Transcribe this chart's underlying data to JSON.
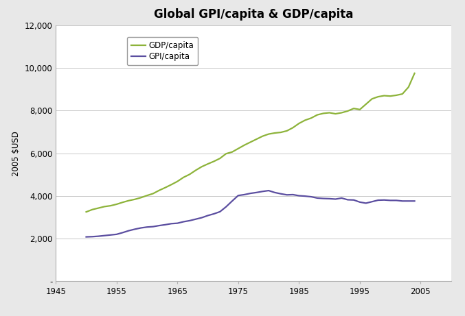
{
  "title": "Global GPI/capita & GDP/capita",
  "ylabel": "2005 $USD",
  "xlim": [
    1945,
    2010
  ],
  "ylim": [
    0,
    12000
  ],
  "xticks": [
    1945,
    1955,
    1965,
    1975,
    1985,
    1995,
    2005
  ],
  "yticks": [
    0,
    2000,
    4000,
    6000,
    8000,
    10000,
    12000
  ],
  "fig_bg_color": "#e8e8e8",
  "plot_bg_color": "#ffffff",
  "gdp_color": "#8db33a",
  "gpi_color": "#5b4ea0",
  "gdp_label": "GDP/capita",
  "gpi_label": "GPI/capita",
  "gdp_years": [
    1950,
    1951,
    1952,
    1953,
    1954,
    1955,
    1956,
    1957,
    1958,
    1959,
    1960,
    1961,
    1962,
    1963,
    1964,
    1965,
    1966,
    1967,
    1968,
    1969,
    1970,
    1971,
    1972,
    1973,
    1974,
    1975,
    1976,
    1977,
    1978,
    1979,
    1980,
    1981,
    1982,
    1983,
    1984,
    1985,
    1986,
    1987,
    1988,
    1989,
    1990,
    1991,
    1992,
    1993,
    1994,
    1995,
    1996,
    1997,
    1998,
    1999,
    2000,
    2001,
    2002,
    2003,
    2004
  ],
  "gdp_values": [
    3250,
    3360,
    3430,
    3500,
    3540,
    3610,
    3700,
    3780,
    3840,
    3920,
    4020,
    4110,
    4260,
    4390,
    4530,
    4680,
    4870,
    5010,
    5200,
    5370,
    5500,
    5620,
    5760,
    5980,
    6060,
    6220,
    6380,
    6520,
    6660,
    6800,
    6900,
    6950,
    6980,
    7050,
    7200,
    7400,
    7550,
    7650,
    7800,
    7870,
    7900,
    7850,
    7900,
    7980,
    8100,
    8050,
    8300,
    8550,
    8650,
    8700,
    8680,
    8720,
    8780,
    9100,
    9750
  ],
  "gpi_years": [
    1950,
    1951,
    1952,
    1953,
    1954,
    1955,
    1956,
    1957,
    1958,
    1959,
    1960,
    1961,
    1962,
    1963,
    1964,
    1965,
    1966,
    1967,
    1968,
    1969,
    1970,
    1971,
    1972,
    1973,
    1974,
    1975,
    1976,
    1977,
    1978,
    1979,
    1980,
    1981,
    1982,
    1983,
    1984,
    1985,
    1986,
    1987,
    1988,
    1989,
    1990,
    1991,
    1992,
    1993,
    1994,
    1995,
    1996,
    1997,
    1998,
    1999,
    2000,
    2001,
    2002,
    2003,
    2004
  ],
  "gpi_values": [
    2080,
    2090,
    2110,
    2140,
    2170,
    2200,
    2280,
    2370,
    2440,
    2500,
    2540,
    2560,
    2610,
    2650,
    2700,
    2720,
    2790,
    2840,
    2910,
    2980,
    3080,
    3160,
    3260,
    3490,
    3760,
    4020,
    4060,
    4120,
    4160,
    4210,
    4250,
    4160,
    4100,
    4050,
    4060,
    4010,
    3990,
    3960,
    3900,
    3880,
    3870,
    3850,
    3900,
    3820,
    3810,
    3710,
    3660,
    3730,
    3800,
    3810,
    3790,
    3790,
    3760,
    3760,
    3760
  ]
}
